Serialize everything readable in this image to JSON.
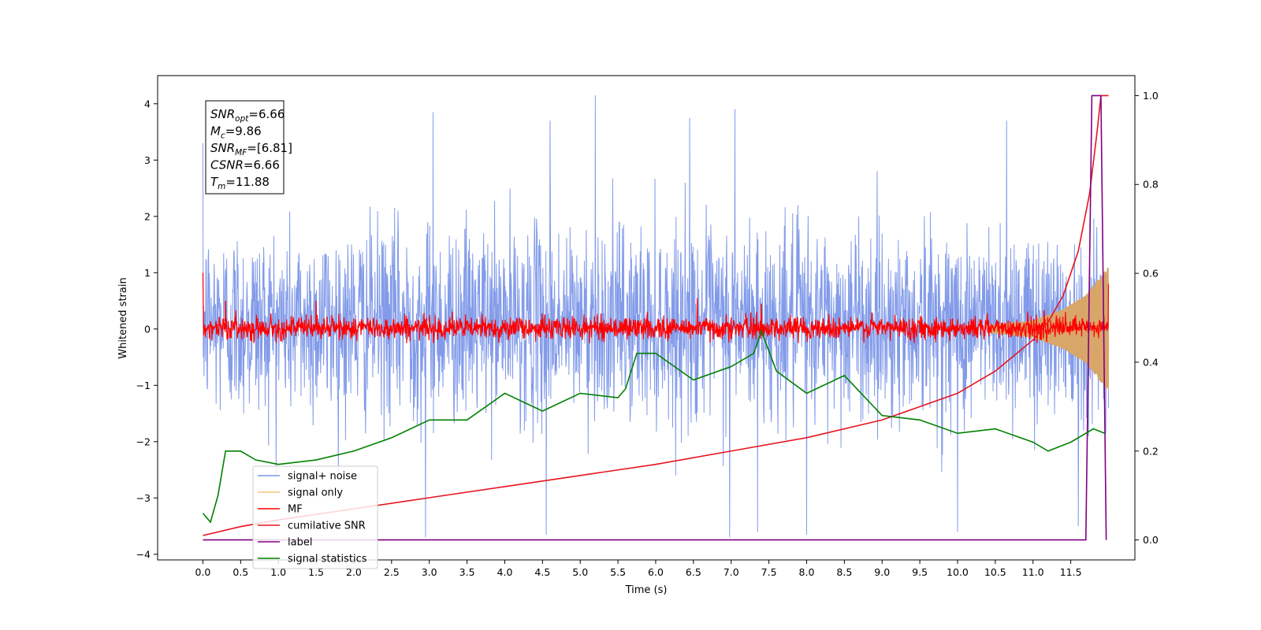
{
  "chart_data": {
    "type": "line",
    "title": "",
    "xlabel": "Time (s)",
    "ylabel": "Whitened strain",
    "xlim": [
      -0.6,
      12.35
    ],
    "ylim": [
      -4.1,
      4.5
    ],
    "y2lim": [
      -0.045,
      1.045
    ],
    "x_ticks": [
      0.0,
      0.5,
      1.0,
      1.5,
      2.0,
      2.5,
      3.0,
      3.5,
      4.0,
      4.5,
      5.0,
      5.5,
      6.0,
      6.5,
      7.0,
      7.5,
      8.0,
      8.5,
      9.0,
      9.5,
      10.0,
      10.5,
      11.0,
      11.5
    ],
    "x_tick_labels": [
      "0.0",
      "0.5",
      "1.0",
      "1.5",
      "2.0",
      "2.5",
      "3.0",
      "3.5",
      "4.0",
      "4.5",
      "5.0",
      "5.5",
      "6.0",
      "6.5",
      "7.0",
      "7.5",
      "8.0",
      "8.5",
      "9.0",
      "9.5",
      "10.0",
      "10.5",
      "11.0",
      "11.5"
    ],
    "y_ticks": [
      -4,
      -3,
      -2,
      -1,
      0,
      1,
      2,
      3,
      4
    ],
    "y_tick_labels": [
      "−4",
      "−3",
      "−2",
      "−1",
      "0",
      "1",
      "2",
      "3",
      "4"
    ],
    "y2_ticks": [
      0.0,
      0.2,
      0.4,
      0.6,
      0.8,
      1.0
    ],
    "y2_tick_labels": [
      "0.0",
      "0.2",
      "0.4",
      "0.6",
      "0.8",
      "1.0"
    ],
    "grid": false,
    "legend_position": "lower-left",
    "legend": [
      {
        "key": "signal_noise",
        "label": "signal+ noise",
        "color": "#7b96e8"
      },
      {
        "key": "signal_only",
        "label": "signal only",
        "color": "#f5c77a"
      },
      {
        "key": "mf",
        "label": "MF",
        "color": "#ff0000"
      },
      {
        "key": "cumulative_snr",
        "label": "cumilative SNR",
        "color": "#e8141e"
      },
      {
        "key": "label",
        "label": "label",
        "color": "#800080"
      },
      {
        "key": "signal_statistics",
        "label": "signal statistics",
        "color": "#008000"
      }
    ],
    "series": [
      {
        "key": "signal_noise",
        "axis": "left",
        "color": "#7b96e8",
        "sampled": true,
        "duration": 12.0,
        "typical_range": [
          -2.1,
          2.4
        ],
        "peaks": [
          [
            0.0,
            3.3
          ],
          [
            3.05,
            3.85
          ],
          [
            5.2,
            4.15
          ],
          [
            4.6,
            3.7
          ],
          [
            6.45,
            3.75
          ],
          [
            7.05,
            3.9
          ],
          [
            10.65,
            3.7
          ],
          [
            11.6,
            3.55
          ]
        ],
        "troughs": [
          [
            2.95,
            -3.7
          ],
          [
            4.55,
            -3.65
          ],
          [
            6.98,
            -3.7
          ],
          [
            7.35,
            -3.6
          ],
          [
            8.0,
            -3.65
          ],
          [
            10.0,
            -3.6
          ],
          [
            11.6,
            -3.5
          ]
        ]
      },
      {
        "key": "signal_only",
        "axis": "left",
        "color": "#d9a66a",
        "description_points": [
          [
            0.0,
            0.05
          ],
          [
            10.5,
            0.08
          ],
          [
            11.0,
            0.15
          ],
          [
            11.4,
            0.35
          ],
          [
            11.7,
            0.6
          ],
          [
            11.9,
            0.95
          ],
          [
            12.0,
            1.1
          ]
        ]
      },
      {
        "key": "mf",
        "axis": "left",
        "color": "#ff0000",
        "sampled": true,
        "start_value": 1.0,
        "typical_range": [
          -0.25,
          0.3
        ],
        "peaks": [
          [
            0.3,
            0.5
          ],
          [
            6.55,
            0.55
          ],
          [
            1.5,
            0.5
          ],
          [
            7.4,
            0.45
          ]
        ]
      },
      {
        "key": "cumulative_snr",
        "axis": "right",
        "x": [
          0.0,
          0.5,
          1.0,
          2.0,
          3.0,
          4.0,
          5.0,
          6.0,
          7.0,
          8.0,
          9.0,
          9.5,
          10.0,
          10.5,
          11.0,
          11.2,
          11.4,
          11.6,
          11.75,
          11.85,
          11.9,
          12.0
        ],
        "values": [
          0.01,
          0.03,
          0.045,
          0.07,
          0.095,
          0.12,
          0.145,
          0.17,
          0.2,
          0.23,
          0.27,
          0.3,
          0.33,
          0.38,
          0.45,
          0.49,
          0.55,
          0.65,
          0.78,
          0.92,
          1.0,
          1.0
        ]
      },
      {
        "key": "label",
        "axis": "right",
        "x": [
          0.0,
          11.7,
          11.78,
          11.9,
          11.97
        ],
        "values": [
          0.0,
          0.0,
          1.0,
          1.0,
          0.0
        ]
      },
      {
        "key": "signal_statistics",
        "axis": "right",
        "x": [
          0.0,
          0.1,
          0.2,
          0.3,
          0.5,
          0.7,
          1.0,
          1.5,
          2.0,
          2.5,
          3.0,
          3.5,
          4.0,
          4.5,
          5.0,
          5.5,
          5.6,
          5.75,
          6.0,
          6.5,
          7.0,
          7.3,
          7.4,
          7.6,
          8.0,
          8.5,
          9.0,
          9.5,
          10.0,
          10.5,
          11.0,
          11.2,
          11.5,
          11.8,
          11.95
        ],
        "values": [
          0.06,
          0.04,
          0.1,
          0.2,
          0.2,
          0.18,
          0.17,
          0.18,
          0.2,
          0.23,
          0.27,
          0.27,
          0.33,
          0.29,
          0.33,
          0.32,
          0.34,
          0.42,
          0.42,
          0.36,
          0.39,
          0.42,
          0.47,
          0.38,
          0.33,
          0.37,
          0.28,
          0.27,
          0.24,
          0.25,
          0.22,
          0.2,
          0.22,
          0.25,
          0.24
        ]
      }
    ]
  },
  "info_box": {
    "lines": [
      {
        "name": "SNR",
        "sub": "opt",
        "value": "=6.66"
      },
      {
        "name": "M",
        "sub": "c",
        "value": "=9.86"
      },
      {
        "name": "SNR",
        "sub": "MF",
        "value": "=[6.81]"
      },
      {
        "name": "CSNR",
        "sub": "",
        "value": "=6.66"
      },
      {
        "name": "T",
        "sub": "m",
        "value": "=11.88"
      }
    ]
  }
}
